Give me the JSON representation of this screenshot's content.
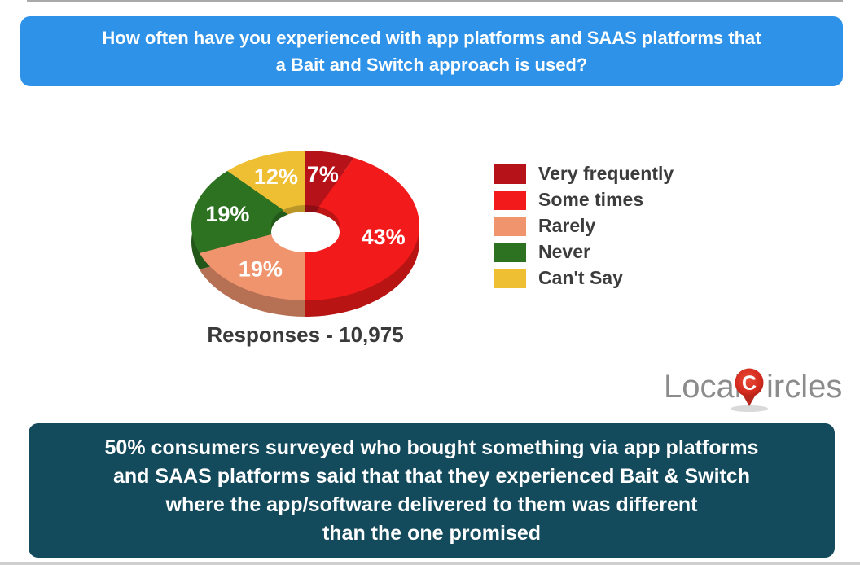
{
  "header": {
    "bg_color": "#2E92E8",
    "text_color": "#FFFFFF",
    "lines": [
      "How often have you experienced with app platforms and SAAS platforms that",
      "a Bait and Switch approach is used?"
    ]
  },
  "chart_data": {
    "type": "pie",
    "subtype": "3d-donut",
    "title": "How often have you experienced with app platforms and SAAS platforms that a Bait and Switch approach is used?",
    "categories": [
      "Very frequently",
      "Some times",
      "Rarely",
      "Never",
      "Can't Say"
    ],
    "values": [
      7,
      43,
      19,
      19,
      12
    ],
    "unit": "%",
    "slice_labels": [
      "7%",
      "43%",
      "19%",
      "19%",
      "12%"
    ],
    "colors": [
      "#B51219",
      "#F21A1A",
      "#F0946E",
      "#2D7221",
      "#EFBF33"
    ],
    "start_angle_deg": 0,
    "direction": "clockwise",
    "legend_position": "right",
    "caption": "Responses - 10,975"
  },
  "legend": {
    "text_color": "#3C3C3C"
  },
  "logo": {
    "prefix": "Local",
    "icon_letter": "C",
    "suffix": "ircles",
    "text_color": "#8C8C8C",
    "pin_color": "#CE2A1D"
  },
  "footer": {
    "bg_color": "#134A5C",
    "text_color": "#FFFFFF",
    "lines": [
      "50% consumers surveyed who bought something via app platforms",
      "and SAAS platforms said that that they experienced Bait & Switch",
      "where the app/software delivered to them was different",
      "than the one promised"
    ]
  }
}
